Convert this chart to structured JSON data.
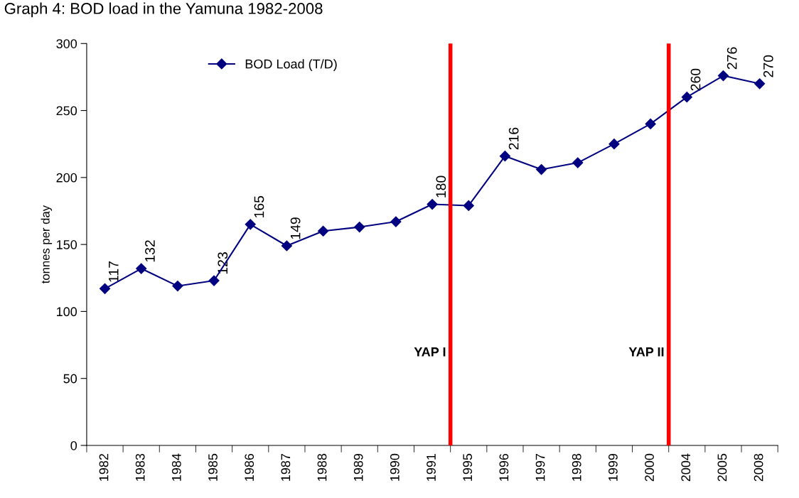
{
  "chart_data": {
    "type": "line",
    "title": "Graph 4: BOD load in the Yamuna 1982-2008",
    "ylabel": "tonnes per day",
    "categories": [
      "1982",
      "1983",
      "1984",
      "1985",
      "1986",
      "1987",
      "1988",
      "1989",
      "1990",
      "1991",
      "1995",
      "1996",
      "1997",
      "1998",
      "1999",
      "2000",
      "2004",
      "2005",
      "2008"
    ],
    "series": [
      {
        "name": "BOD Load (T/D)",
        "color": "#000080",
        "values": [
          117,
          132,
          119,
          123,
          165,
          149,
          160,
          163,
          167,
          180,
          179,
          216,
          206,
          211,
          225,
          240,
          260,
          276,
          270
        ],
        "value_labels": [
          "117",
          "132",
          null,
          "123",
          "165",
          "149",
          null,
          null,
          null,
          "180",
          null,
          "216",
          null,
          null,
          null,
          null,
          "260",
          "276",
          "270"
        ]
      }
    ],
    "ylim": [
      0,
      300
    ],
    "yticks": [
      0,
      50,
      100,
      150,
      200,
      250,
      300
    ],
    "annotations": [
      "YAP I",
      "YAP II"
    ],
    "legend": "top left",
    "marker": "diamond",
    "line_style": "solid",
    "grid": false
  }
}
